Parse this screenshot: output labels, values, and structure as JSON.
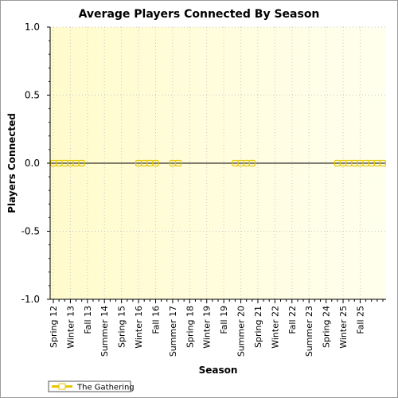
{
  "chart_data": {
    "type": "line",
    "title": "Average Players Connected By Season",
    "xlabel": "Season",
    "ylabel": "Players Connected",
    "ylim": [
      -1.0,
      1.0
    ],
    "yticks": [
      "1.0",
      "0.5",
      "0.0",
      "-0.5",
      "-1.0"
    ],
    "tick_labels": [
      "Spring 12",
      "Winter 13",
      "Fall 13",
      "Summer 14",
      "Spring 15",
      "Winter 16",
      "Fall 16",
      "Summer 17",
      "Spring 18",
      "Winter 19",
      "Fall 19",
      "Summer 20",
      "Spring 21",
      "Winter 22",
      "Fall 22",
      "Summer 23",
      "Spring 24",
      "Winter 25",
      "Fall 25"
    ],
    "x_start": 0,
    "x_end": 58,
    "tick_positions": [
      0,
      3,
      6,
      9,
      12,
      15,
      18,
      21,
      24,
      27,
      30,
      33,
      36,
      39,
      42,
      45,
      48,
      51,
      54
    ],
    "series": [
      {
        "name": "The Gathering",
        "color": "#e5c700",
        "points": [
          {
            "x": 0,
            "y": 0
          },
          {
            "x": 1,
            "y": 0
          },
          {
            "x": 2,
            "y": 0
          },
          {
            "x": 3,
            "y": 0
          },
          {
            "x": 4,
            "y": 0
          },
          {
            "x": 5,
            "y": 0
          },
          {
            "x": 15,
            "y": 0
          },
          {
            "x": 16,
            "y": 0
          },
          {
            "x": 17,
            "y": 0
          },
          {
            "x": 18,
            "y": 0
          },
          {
            "x": 21,
            "y": 0
          },
          {
            "x": 22,
            "y": 0
          },
          {
            "x": 32,
            "y": 0
          },
          {
            "x": 33,
            "y": 0
          },
          {
            "x": 34,
            "y": 0
          },
          {
            "x": 35,
            "y": 0
          },
          {
            "x": 50,
            "y": 0
          },
          {
            "x": 51,
            "y": 0
          },
          {
            "x": 52,
            "y": 0
          },
          {
            "x": 53,
            "y": 0
          },
          {
            "x": 54,
            "y": 0
          },
          {
            "x": 55,
            "y": 0
          },
          {
            "x": 56,
            "y": 0
          },
          {
            "x": 57,
            "y": 0
          },
          {
            "x": 58,
            "y": 0
          }
        ]
      }
    ],
    "grid": true,
    "legend": "bottom-left",
    "plot_background": "#fffde0"
  }
}
